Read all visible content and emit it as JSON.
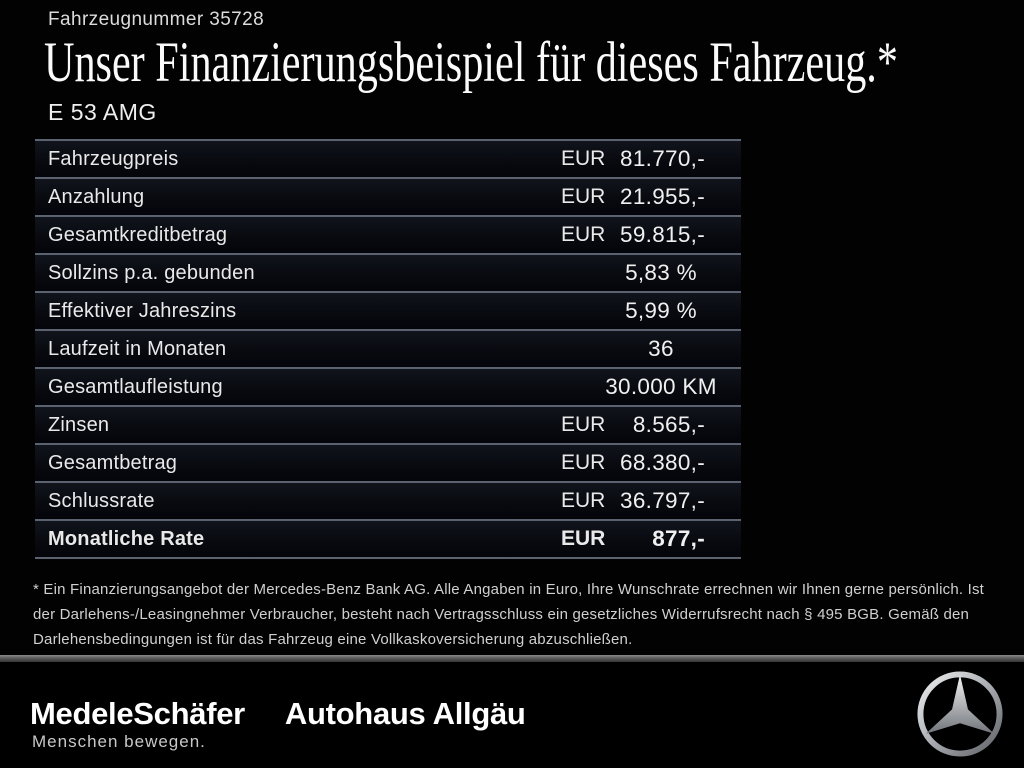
{
  "header": {
    "vehicle_number": "Fahrzeugnummer 35728",
    "title": "Unser Finanzierungsbeispiel für dieses Fahrzeug.*",
    "model": "E 53 AMG"
  },
  "finance_table": {
    "rows": [
      {
        "label": "Fahrzeugpreis",
        "currency": "EUR",
        "value": "81.770,-",
        "emphasis": false
      },
      {
        "label": "Anzahlung",
        "currency": "EUR",
        "value": "21.955,-",
        "emphasis": false
      },
      {
        "label": "Gesamtkreditbetrag",
        "currency": "EUR",
        "value": "59.815,-",
        "emphasis": false
      },
      {
        "label": "Sollzins p.a. gebunden",
        "currency": "",
        "value": "5,83 %",
        "emphasis": false
      },
      {
        "label": "Effektiver Jahreszins",
        "currency": "",
        "value": "5,99 %",
        "emphasis": false
      },
      {
        "label": "Laufzeit in Monaten",
        "currency": "",
        "value": "36",
        "emphasis": false
      },
      {
        "label": "Gesamtlaufleistung",
        "currency": "",
        "value": "30.000 KM",
        "emphasis": false
      },
      {
        "label": "Zinsen",
        "currency": "EUR",
        "value": "8.565,-",
        "emphasis": false
      },
      {
        "label": "Gesamtbetrag",
        "currency": "EUR",
        "value": "68.380,-",
        "emphasis": false
      },
      {
        "label": "Schlussrate",
        "currency": "EUR",
        "value": "36.797,-",
        "emphasis": false
      },
      {
        "label": "Monatliche Rate",
        "currency": "EUR",
        "value": "877,-",
        "emphasis": true
      }
    ]
  },
  "footnote": {
    "text": "* Ein Finanzierungsangebot der Mercedes-Benz Bank AG. Alle Angaben in Euro, Ihre Wunschrate errechnen wir Ihnen gerne persönlich. Ist der Darlehens-/Leasingnehmer Verbraucher, besteht nach Vertragsschluss ein gesetzliches Widerrufsrecht nach § 495 BGB. Gemäß den Darlehensbedingungen ist für das Fahrzeug eine Vollkaskoversicherung abzuschließen."
  },
  "footer": {
    "dealer_logo_primary": "MedeleSchäfer",
    "dealer_logo_secondary": "Autohaus Allgäu",
    "tagline": "Menschen bewegen.",
    "brand_icon": "mercedes-star-icon"
  },
  "colors": {
    "background": "#020202",
    "row_background": "#0b0d12",
    "separator": "#5a636f",
    "text_primary": "#f0f0f0",
    "text_secondary": "#d0d0d0"
  }
}
